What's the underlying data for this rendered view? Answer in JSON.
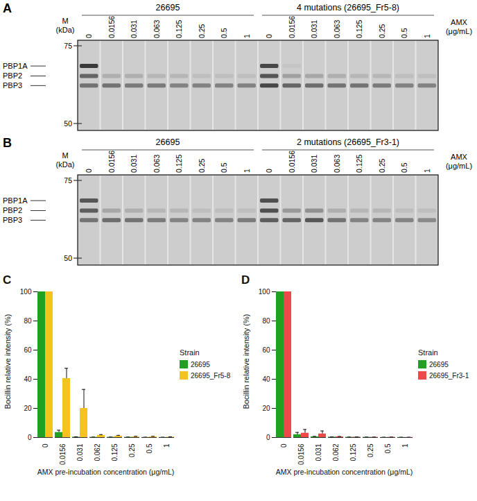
{
  "gels": [
    {
      "label": "A",
      "marker_label": [
        "M",
        "(kDa)"
      ],
      "marker_ticks": [
        75,
        50
      ],
      "amx_label": [
        "AMX",
        "(μg/mL)"
      ],
      "concentrations": [
        0,
        0.0156,
        0.031,
        0.063,
        0.125,
        0.25,
        0.5,
        1
      ],
      "bands": [
        {
          "name": "PBP1A",
          "kda": 68.5
        },
        {
          "name": "PBP2",
          "kda": 65.3
        },
        {
          "name": "PBP3",
          "kda": 62.2
        }
      ],
      "groups": [
        {
          "name": "26695",
          "intensity": {
            "PBP1A": [
              1,
              0,
              0,
              0,
              0,
              0,
              0,
              0
            ],
            "PBP2": [
              0.7,
              0.2,
              0.2,
              0.15,
              0.15,
              0.1,
              0.1,
              0.1
            ],
            "PBP3": [
              0.6,
              0.6,
              0.55,
              0.55,
              0.5,
              0.5,
              0.5,
              0.5
            ]
          }
        },
        {
          "name": "4 mutations (26695_Fr5-8)",
          "intensity": {
            "PBP1A": [
              0.9,
              0.05,
              0,
              0,
              0,
              0,
              0,
              0
            ],
            "PBP2": [
              0.8,
              0.3,
              0.25,
              0.2,
              0.15,
              0.15,
              0.1,
              0.1
            ],
            "PBP3": [
              0.9,
              0.7,
              0.65,
              0.6,
              0.6,
              0.55,
              0.5,
              0.5
            ]
          }
        }
      ]
    },
    {
      "label": "B",
      "marker_label": [
        "M",
        "(kDa)"
      ],
      "marker_ticks": [
        75,
        50
      ],
      "amx_label": [
        "AMX",
        "(μg/mL)"
      ],
      "concentrations": [
        0,
        0.0156,
        0.031,
        0.063,
        0.125,
        0.25,
        0.5,
        1
      ],
      "bands": [
        {
          "name": "PBP1A",
          "kda": 68.5
        },
        {
          "name": "PBP2",
          "kda": 65.3
        },
        {
          "name": "PBP3",
          "kda": 62.2
        }
      ],
      "groups": [
        {
          "name": "26695",
          "intensity": {
            "PBP1A": [
              0.8,
              0,
              0,
              0,
              0,
              0,
              0,
              0
            ],
            "PBP2": [
              0.75,
              0.25,
              0.2,
              0.15,
              0.15,
              0.1,
              0.1,
              0.1
            ],
            "PBP3": [
              0.6,
              0.65,
              0.6,
              0.55,
              0.5,
              0.5,
              0.5,
              0.55
            ]
          }
        },
        {
          "name": "2 mutations (26695_Fr3-1)",
          "intensity": {
            "PBP1A": [
              0.85,
              0,
              0,
              0,
              0,
              0,
              0,
              0
            ],
            "PBP2": [
              0.85,
              0.35,
              0.4,
              0.2,
              0.15,
              0.15,
              0.1,
              0.1
            ],
            "PBP3": [
              0.75,
              0.7,
              0.8,
              0.6,
              0.5,
              0.5,
              0.5,
              0.45
            ]
          }
        }
      ]
    }
  ],
  "chart_data": [
    {
      "type": "bar",
      "title": "C",
      "x_label": "AMX pre-incubation concentration (μg/mL)",
      "y_label": "Bocillin relative intensity (%)",
      "legend_title": "Strain",
      "legend": "right",
      "grid": false,
      "categories": [
        "0",
        "0.0156",
        "0.031",
        "0.062",
        "0.125",
        "0.25",
        "0.5",
        "1"
      ],
      "ylim": [
        0,
        100
      ],
      "yticks": [
        0,
        20,
        40,
        60,
        80,
        100
      ],
      "series": [
        {
          "name": "26695",
          "color": "#22a022",
          "values": [
            100,
            3.5,
            0.3,
            0.2,
            0.2,
            0.2,
            0.1,
            0.1
          ],
          "errors": [
            0,
            1.5,
            0.2,
            0.1,
            0.1,
            0.1,
            0.1,
            0.1
          ]
        },
        {
          "name": "26695_Fr5-8",
          "color": "#f5c21f",
          "values": [
            100,
            40.5,
            20,
            1.5,
            1,
            0.5,
            0.5,
            0.3
          ],
          "errors": [
            0,
            7,
            13,
            0.5,
            0.5,
            0.3,
            0.3,
            0.2
          ]
        }
      ]
    },
    {
      "type": "bar",
      "title": "D",
      "x_label": "AMX pre-incubation concentration (μg/mL)",
      "y_label": "Bocillin relative intensity (%)",
      "legend_title": "Strain",
      "legend": "right",
      "grid": false,
      "categories": [
        "0",
        "0.0156",
        "0.031",
        "0.062",
        "0.125",
        "0.25",
        "0.5",
        "1"
      ],
      "ylim": [
        0,
        100
      ],
      "yticks": [
        0,
        20,
        40,
        60,
        80,
        100
      ],
      "series": [
        {
          "name": "26695",
          "color": "#22a022",
          "values": [
            100,
            2,
            0.5,
            0.3,
            0.2,
            0.2,
            0.1,
            0.1
          ],
          "errors": [
            0,
            1.5,
            0.3,
            0.1,
            0.1,
            0.1,
            0.1,
            0.1
          ]
        },
        {
          "name": "26695_Fr3-1",
          "color": "#f04848",
          "values": [
            100,
            3,
            2.5,
            0.5,
            0.3,
            0.2,
            0.2,
            0.1
          ],
          "errors": [
            0,
            2.5,
            2,
            0.2,
            0.1,
            0.1,
            0.1,
            0.1
          ]
        }
      ]
    }
  ]
}
